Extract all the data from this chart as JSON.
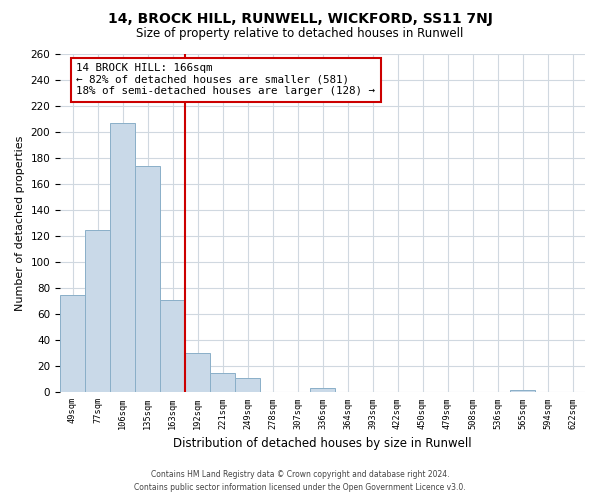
{
  "title": "14, BROCK HILL, RUNWELL, WICKFORD, SS11 7NJ",
  "subtitle": "Size of property relative to detached houses in Runwell",
  "xlabel": "Distribution of detached houses by size in Runwell",
  "ylabel": "Number of detached properties",
  "bin_labels": [
    "49sqm",
    "77sqm",
    "106sqm",
    "135sqm",
    "163sqm",
    "192sqm",
    "221sqm",
    "249sqm",
    "278sqm",
    "307sqm",
    "336sqm",
    "364sqm",
    "393sqm",
    "422sqm",
    "450sqm",
    "479sqm",
    "508sqm",
    "536sqm",
    "565sqm",
    "594sqm",
    "622sqm"
  ],
  "bar_heights": [
    75,
    125,
    207,
    174,
    71,
    30,
    15,
    11,
    0,
    0,
    3,
    0,
    0,
    0,
    0,
    0,
    0,
    0,
    2,
    0,
    0
  ],
  "bar_color": "#c9d9e8",
  "bar_edge_color": "#8aafc8",
  "vline_x_index": 4,
  "vline_color": "#cc0000",
  "annotation_title": "14 BROCK HILL: 166sqm",
  "annotation_line1": "← 82% of detached houses are smaller (581)",
  "annotation_line2": "18% of semi-detached houses are larger (128) →",
  "annotation_box_color": "#ffffff",
  "annotation_box_edge": "#cc0000",
  "ylim": [
    0,
    260
  ],
  "yticks": [
    0,
    20,
    40,
    60,
    80,
    100,
    120,
    140,
    160,
    180,
    200,
    220,
    240,
    260
  ],
  "footer1": "Contains HM Land Registry data © Crown copyright and database right 2024.",
  "footer2": "Contains public sector information licensed under the Open Government Licence v3.0.",
  "background_color": "#ffffff",
  "grid_color": "#d0d8e0"
}
